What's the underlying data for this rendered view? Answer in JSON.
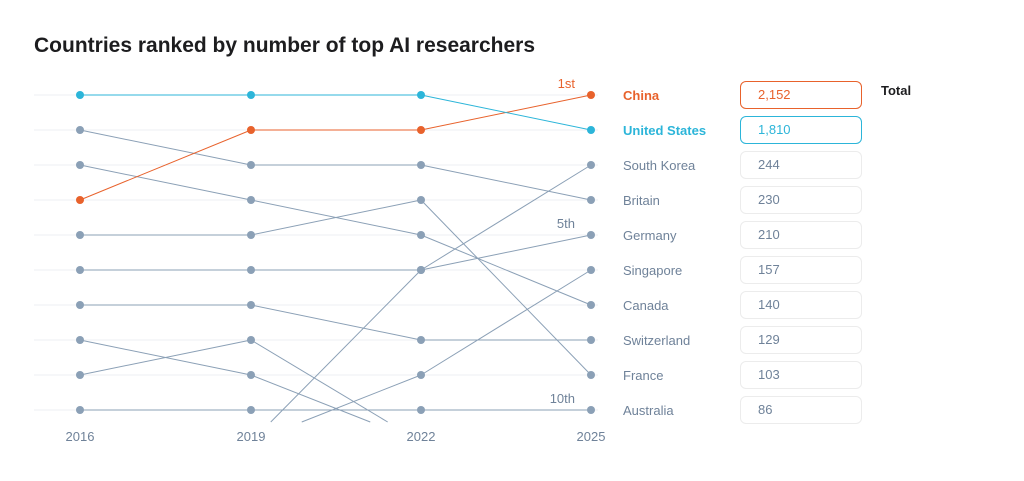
{
  "title": "Countries ranked by number of top AI researchers",
  "total_header": "Total",
  "colors": {
    "china": "#e8622c",
    "united_states": "#2cb5d9",
    "other": "#8ba0b6",
    "grid": "#eceff3",
    "axis_text": "#6f8299"
  },
  "chart_data": {
    "type": "line",
    "chart_kind": "bump",
    "x": [
      "2016",
      "2019",
      "2022",
      "2025"
    ],
    "y_axis": "rank",
    "ylim": [
      1,
      10
    ],
    "y_inverted": true,
    "rank_annotations": [
      {
        "rank": 1,
        "label": "1st"
      },
      {
        "rank": 5,
        "label": "5th"
      },
      {
        "rank": 10,
        "label": "10th"
      }
    ],
    "series": [
      {
        "name": "China",
        "ranks": [
          4,
          2,
          2,
          1
        ],
        "total": "2,152",
        "highlight": "china"
      },
      {
        "name": "United States",
        "ranks": [
          1,
          1,
          1,
          2
        ],
        "total": "1,810",
        "highlight": "united_states"
      },
      {
        "name": "South Korea",
        "ranks": [
          null,
          null,
          6,
          3
        ],
        "total": "244"
      },
      {
        "name": "Britain",
        "ranks": [
          2,
          3,
          3,
          4
        ],
        "total": "230"
      },
      {
        "name": "Germany",
        "ranks": [
          6,
          6,
          6,
          5
        ],
        "total": "210"
      },
      {
        "name": "Singapore",
        "ranks": [
          null,
          null,
          9,
          6
        ],
        "total": "157"
      },
      {
        "name": "Canada",
        "ranks": [
          3,
          4,
          5,
          7
        ],
        "total": "140"
      },
      {
        "name": "Switzerland",
        "ranks": [
          7,
          7,
          8,
          8
        ],
        "total": "129"
      },
      {
        "name": "France",
        "ranks": [
          5,
          5,
          4,
          9
        ],
        "total": "103"
      },
      {
        "name": "Australia",
        "ranks": [
          10,
          10,
          10,
          10
        ],
        "total": "86"
      },
      {
        "name": "",
        "ranks": [
          8,
          9,
          null,
          null
        ],
        "total": ""
      },
      {
        "name": "",
        "ranks": [
          9,
          8,
          null,
          null
        ],
        "total": ""
      }
    ]
  }
}
